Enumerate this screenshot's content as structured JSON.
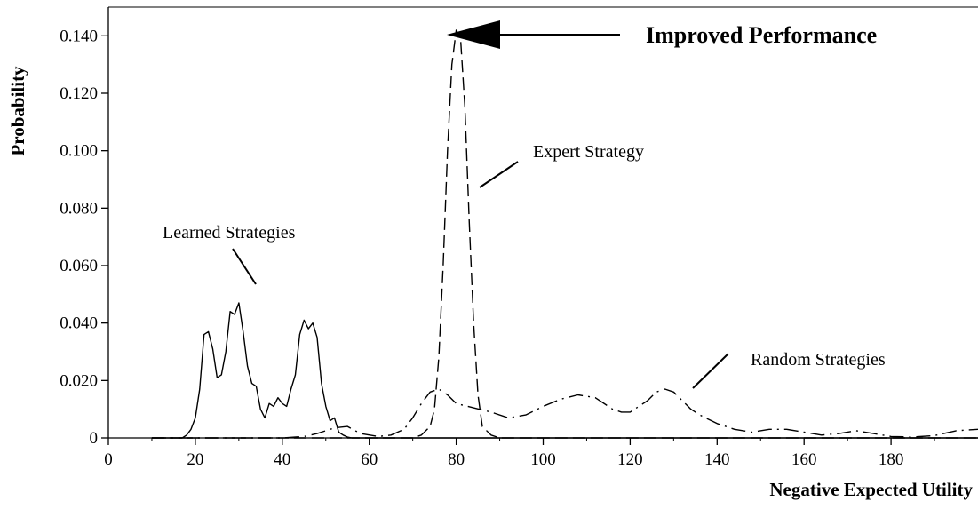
{
  "chart_data": {
    "type": "line",
    "xlabel": "Negative Expected Utility",
    "ylabel": "Probability",
    "xlim": [
      0,
      200
    ],
    "ylim": [
      0,
      0.15
    ],
    "x_ticks": [
      "0",
      "20",
      "40",
      "60",
      "80",
      "100",
      "120",
      "140",
      "160",
      "180"
    ],
    "y_ticks": [
      "0",
      "0.020",
      "0.040",
      "0.060",
      "0.080",
      "0.100",
      "0.120",
      "0.140"
    ],
    "grid": false,
    "legend": "none",
    "series": [
      {
        "name": "Learned Strategies",
        "style": "solid",
        "x": [
          10,
          17,
          18,
          19,
          20,
          21,
          22,
          23,
          24,
          25,
          26,
          27,
          28,
          29,
          30,
          31,
          32,
          33,
          34,
          35,
          36,
          37,
          38,
          39,
          40,
          41,
          42,
          43,
          44,
          45,
          46,
          47,
          48,
          49,
          50,
          51,
          52,
          53,
          54,
          55,
          56,
          57,
          58,
          59,
          60,
          61,
          62,
          63,
          64,
          200
        ],
        "y": [
          0,
          0,
          0.001,
          0.003,
          0.007,
          0.017,
          0.036,
          0.037,
          0.031,
          0.021,
          0.022,
          0.03,
          0.044,
          0.043,
          0.047,
          0.037,
          0.025,
          0.019,
          0.018,
          0.01,
          0.007,
          0.012,
          0.011,
          0.014,
          0.012,
          0.011,
          0.017,
          0.022,
          0.036,
          0.041,
          0.038,
          0.04,
          0.035,
          0.019,
          0.011,
          0.006,
          0.007,
          0.002,
          0.001,
          0.0003,
          0,
          0,
          0,
          0,
          0,
          0,
          0,
          0,
          0,
          0
        ]
      },
      {
        "name": "Expert Strategy",
        "style": "dashed",
        "x": [
          10,
          70,
          72,
          74,
          75,
          76,
          77,
          78,
          79,
          80,
          81,
          82,
          83,
          84,
          85,
          86,
          88,
          90,
          200
        ],
        "y": [
          0,
          0,
          0.001,
          0.004,
          0.01,
          0.028,
          0.06,
          0.1,
          0.13,
          0.142,
          0.139,
          0.115,
          0.075,
          0.04,
          0.015,
          0.004,
          0.001,
          0,
          0
        ]
      },
      {
        "name": "Random Strategies",
        "style": "dash-dot",
        "x": [
          10,
          40,
          45,
          48,
          52,
          55,
          58,
          62,
          65,
          68,
          70,
          72,
          74,
          76,
          78,
          80,
          84,
          88,
          92,
          96,
          100,
          104,
          108,
          112,
          116,
          118,
          120,
          122,
          124,
          126,
          128,
          130,
          132,
          134,
          136,
          140,
          144,
          148,
          152,
          156,
          160,
          164,
          168,
          172,
          176,
          180,
          185,
          190,
          195,
          200
        ],
        "y": [
          0,
          0,
          0.0005,
          0.0015,
          0.0035,
          0.004,
          0.0015,
          0.0005,
          0.001,
          0.003,
          0.007,
          0.012,
          0.016,
          0.017,
          0.015,
          0.012,
          0.0105,
          0.009,
          0.007,
          0.008,
          0.011,
          0.0135,
          0.015,
          0.014,
          0.01,
          0.009,
          0.009,
          0.011,
          0.013,
          0.016,
          0.017,
          0.016,
          0.013,
          0.01,
          0.008,
          0.005,
          0.003,
          0.002,
          0.003,
          0.003,
          0.002,
          0.001,
          0.0015,
          0.0025,
          0.0015,
          0.0005,
          0.0003,
          0.0008,
          0.0025,
          0.003
        ]
      }
    ],
    "annotations": [
      {
        "id": "learned",
        "text": "Learned Strategies"
      },
      {
        "id": "expert",
        "text": "Expert Strategy"
      },
      {
        "id": "random",
        "text": "Random Strategies"
      },
      {
        "id": "improved",
        "text": "Improved Performance"
      }
    ]
  }
}
